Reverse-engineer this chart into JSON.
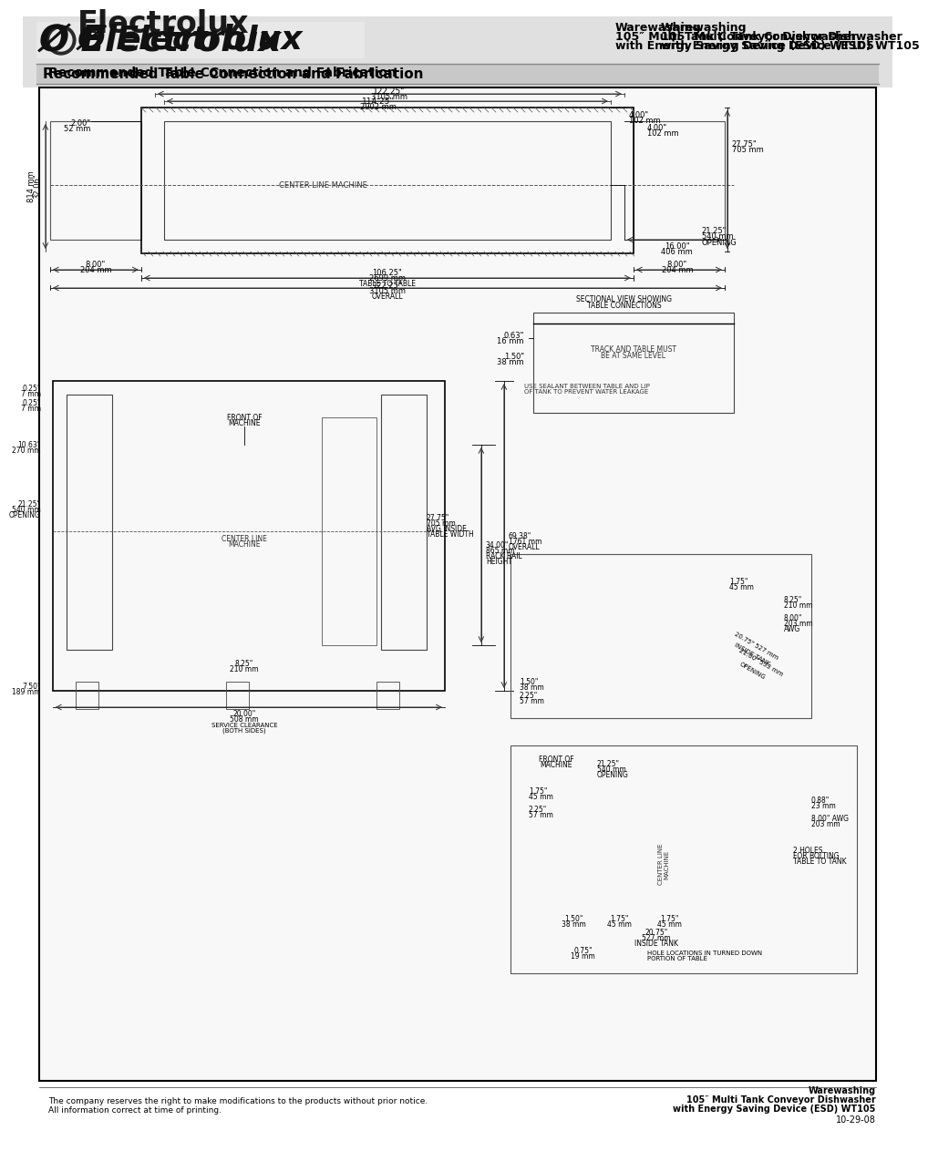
{
  "page_bg": "#ffffff",
  "header_bg": "#d0d0d0",
  "header_text_color": "#000000",
  "title_right_line1": "Warewashing",
  "title_right_line2": "105″ Multi Tank Conveyor Dishwasher",
  "title_right_line3": "with Energy Saving Device (ESD) WT105",
  "subtitle": "Recommended Table Connection and Fabrication",
  "footer_left_line1": "The company reserves the right to make modifications to the products without prior notice.",
  "footer_left_line2": "All information correct at time of printing.",
  "footer_right_line1": "Warewashing",
  "footer_right_line2": "105″ Multi Tank Conveyor Dishwasher",
  "footer_right_line3": "with Energy Saving Device (ESD) WT105",
  "footer_right_line4": "10-29-08",
  "diagram_border_color": "#000000",
  "line_color": "#000000",
  "dim_color": "#000000"
}
